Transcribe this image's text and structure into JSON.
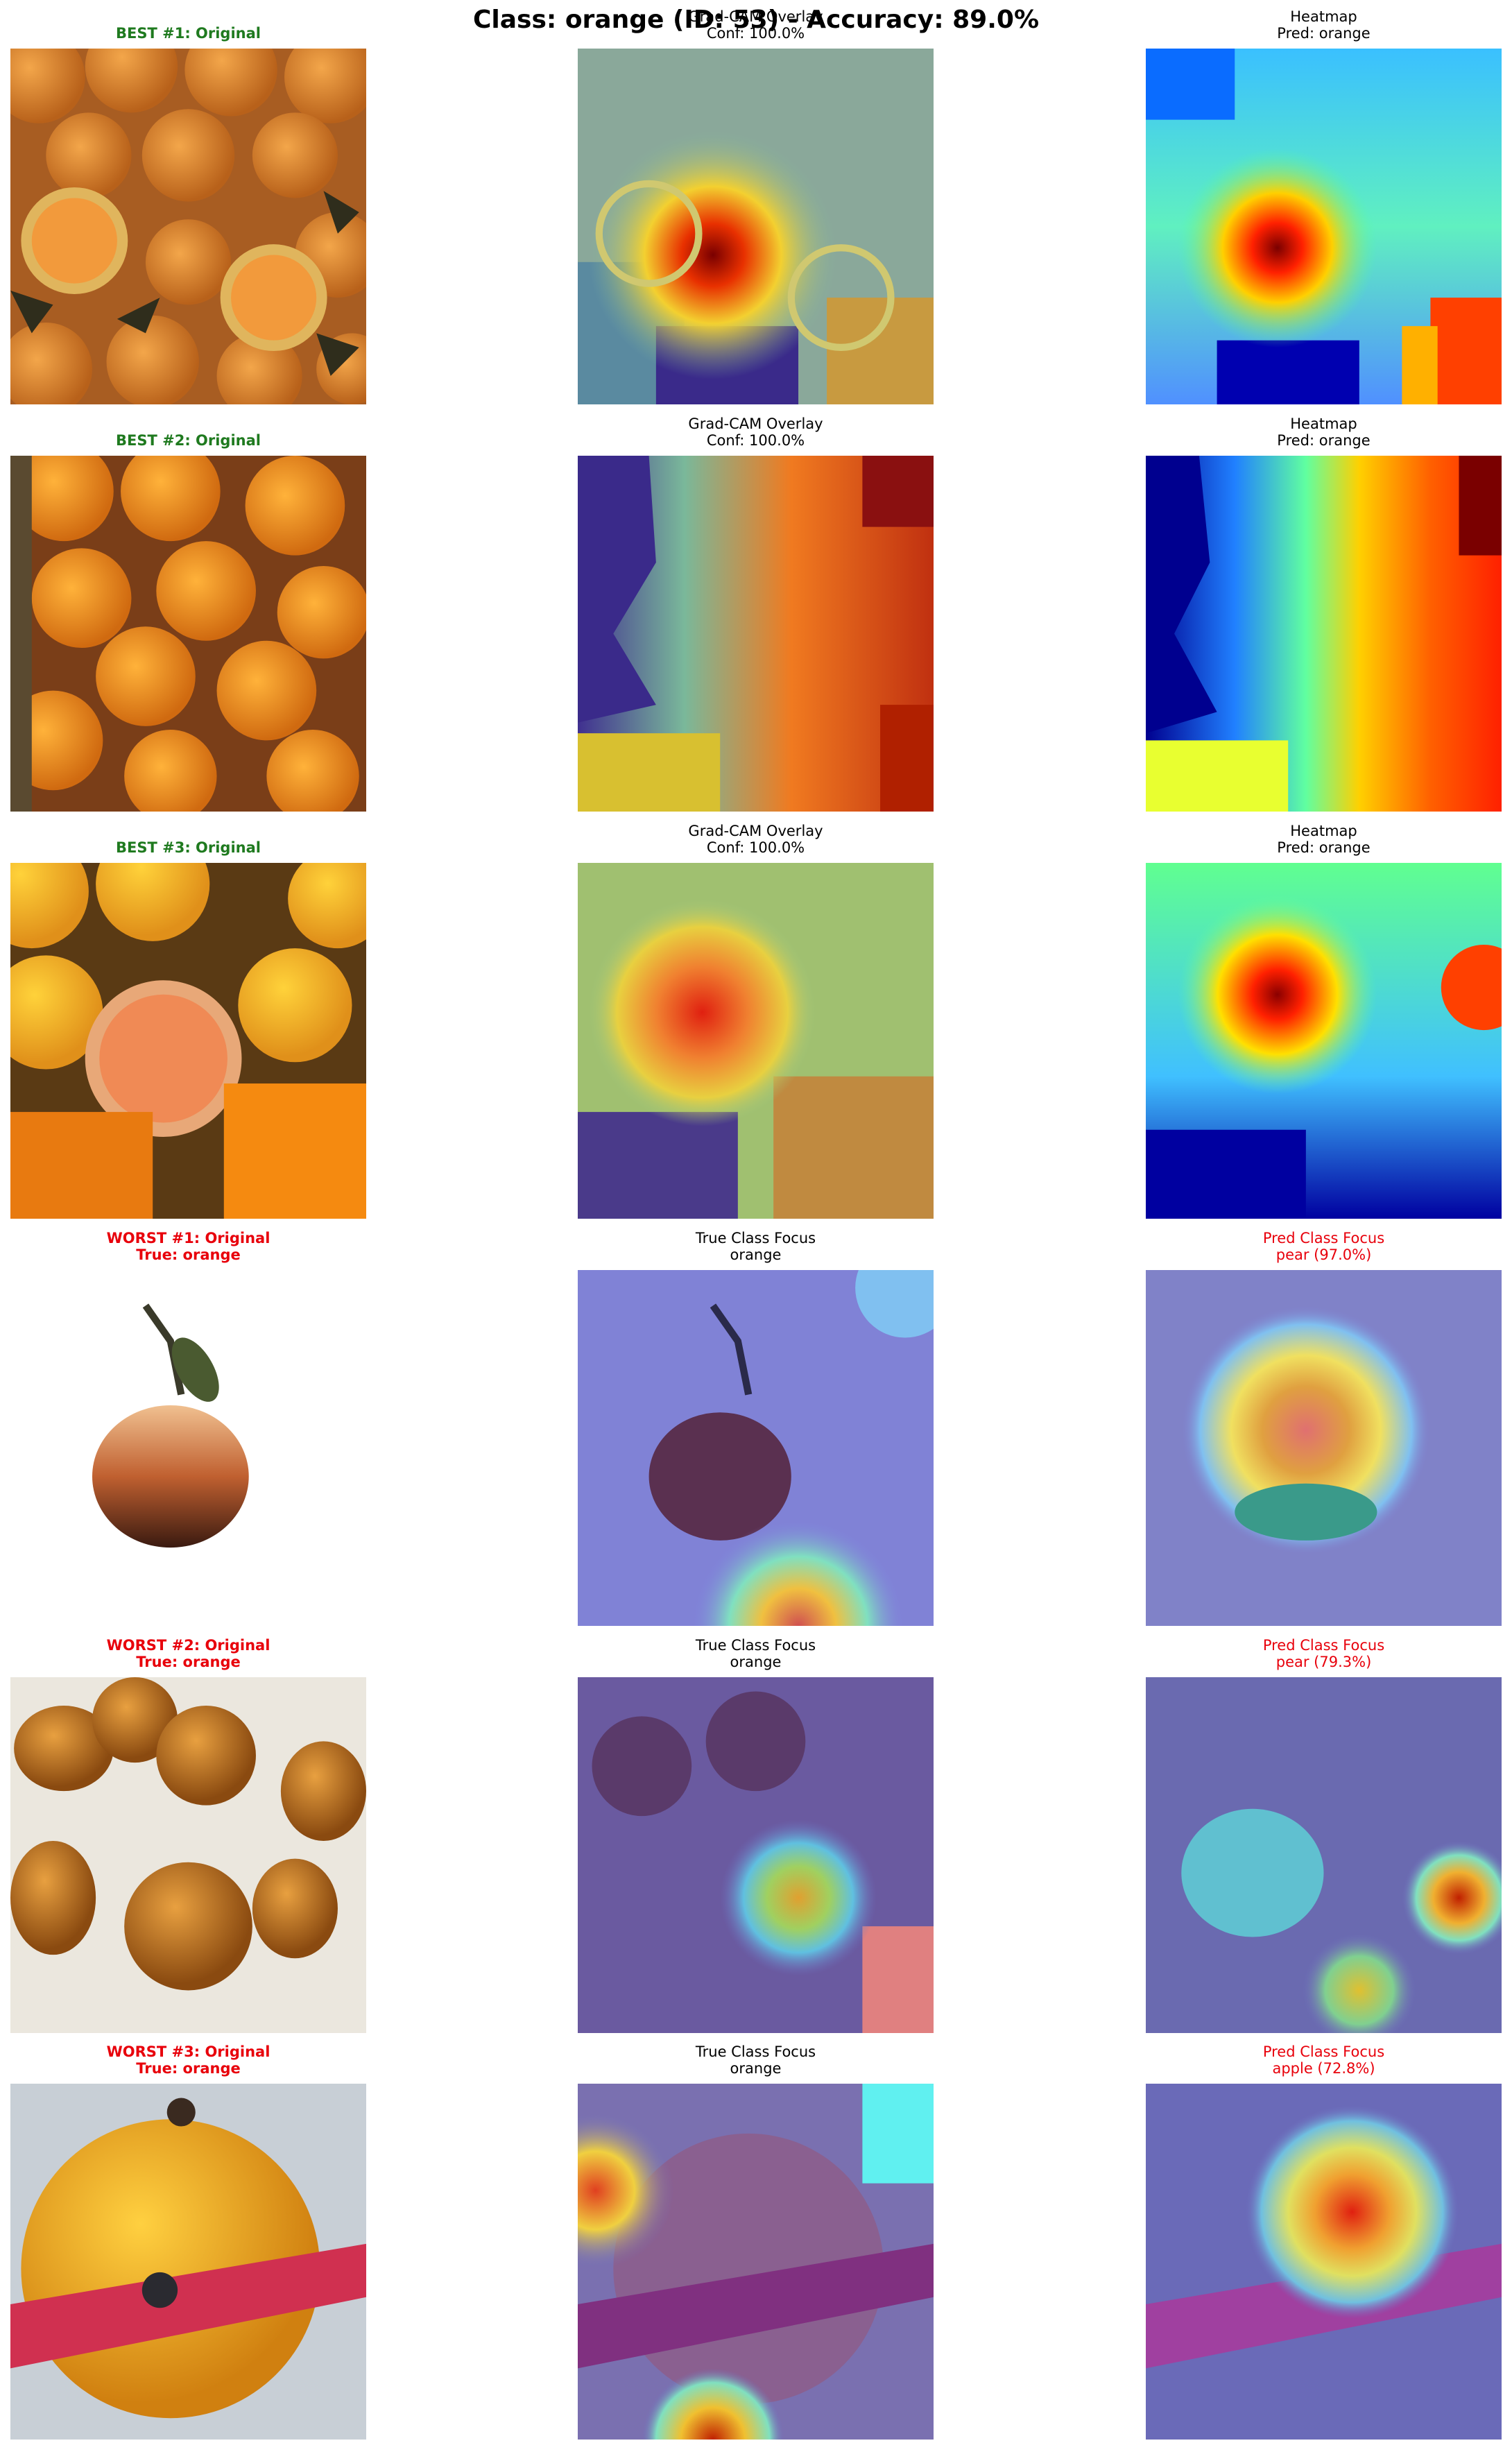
{
  "figure": {
    "suptitle": "Class: orange (ID: 53) - Accuracy: 89.0%"
  },
  "rows": [
    {
      "original": {
        "line1": "BEST #1: Original",
        "line2": "",
        "style": "green",
        "image": "orange-fruits-with-cut-halves-photo"
      },
      "overlay": {
        "line1": "Grad-CAM Overlay",
        "line2": "Conf: 100.0%",
        "style": "black",
        "image": "gradcam-overlay-heatmap"
      },
      "third": {
        "line1": "Heatmap",
        "line2": "Pred: orange",
        "style": "black",
        "image": "jet-colormap-heatmap"
      }
    },
    {
      "original": {
        "line1": "BEST #2: Original",
        "line2": "",
        "style": "green",
        "image": "pile-of-oranges-photo"
      },
      "overlay": {
        "line1": "Grad-CAM Overlay",
        "line2": "Conf: 100.0%",
        "style": "black",
        "image": "gradcam-overlay-heatmap"
      },
      "third": {
        "line1": "Heatmap",
        "line2": "Pred: orange",
        "style": "black",
        "image": "jet-colormap-heatmap"
      }
    },
    {
      "original": {
        "line1": "BEST #3: Original",
        "line2": "",
        "style": "green",
        "image": "oranges-with-sliced-half-photo"
      },
      "overlay": {
        "line1": "Grad-CAM Overlay",
        "line2": "Conf: 100.0%",
        "style": "black",
        "image": "gradcam-overlay-heatmap"
      },
      "third": {
        "line1": "Heatmap",
        "line2": "Pred: orange",
        "style": "black",
        "image": "jet-colormap-heatmap"
      }
    },
    {
      "original": {
        "line1": "WORST #1: Original",
        "line2": "True: orange",
        "style": "redb",
        "image": "single-fruit-with-leaf-photo"
      },
      "overlay": {
        "line1": "True Class Focus",
        "line2": "orange",
        "style": "black",
        "image": "gradcam-overlay-heatmap"
      },
      "third": {
        "line1": "Pred Class Focus",
        "line2": "pear (97.0%)",
        "style": "red",
        "image": "gradcam-overlay-heatmap"
      }
    },
    {
      "original": {
        "line1": "WORST #2: Original",
        "line2": "True: orange",
        "style": "redb",
        "image": "tangerines-on-white-photo"
      },
      "overlay": {
        "line1": "True Class Focus",
        "line2": "orange",
        "style": "black",
        "image": "gradcam-overlay-heatmap"
      },
      "third": {
        "line1": "Pred Class Focus",
        "line2": "pear (79.3%)",
        "style": "red",
        "image": "gradcam-overlay-heatmap"
      }
    },
    {
      "original": {
        "line1": "WORST #3: Original",
        "line2": "True: orange",
        "style": "redb",
        "image": "orange-wrapped-with-red-ribbon-photo"
      },
      "overlay": {
        "line1": "True Class Focus",
        "line2": "orange",
        "style": "black",
        "image": "gradcam-overlay-heatmap"
      },
      "third": {
        "line1": "Pred Class Focus",
        "line2": "apple (72.8%)",
        "style": "red",
        "image": "gradcam-overlay-heatmap"
      }
    }
  ],
  "chart_data": {
    "type": "image-grid",
    "title": "Class: orange (ID: 53) - Accuracy: 89.0%",
    "class_name": "orange",
    "class_id": 53,
    "accuracy_percent": 89.0,
    "best": [
      {
        "rank": 1,
        "pred": "orange",
        "confidence_percent": 100.0
      },
      {
        "rank": 2,
        "pred": "orange",
        "confidence_percent": 100.0
      },
      {
        "rank": 3,
        "pred": "orange",
        "confidence_percent": 100.0
      }
    ],
    "worst": [
      {
        "rank": 1,
        "true": "orange",
        "pred": "pear",
        "confidence_percent": 97.0
      },
      {
        "rank": 2,
        "true": "orange",
        "pred": "pear",
        "confidence_percent": 79.3
      },
      {
        "rank": 3,
        "true": "orange",
        "pred": "apple",
        "confidence_percent": 72.8
      }
    ],
    "colors": {
      "best_title": "#1f7a1f",
      "worst_title": "#e8000b",
      "pred_focus_title": "#e8000b"
    }
  }
}
